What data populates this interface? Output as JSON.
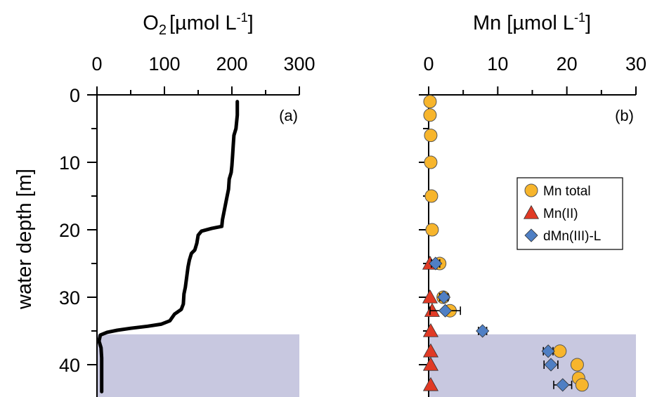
{
  "chart_data": [
    {
      "type": "line",
      "panel_label": "(a)",
      "title": "O₂ [µmol L⁻¹]",
      "title_parts": {
        "base": "O",
        "sub": "2",
        "unit": "[µmol L",
        "sup": "-1",
        "close": "]"
      },
      "xlabel": "O₂ [µmol L⁻¹]",
      "ylabel": "water depth [m]",
      "x_axis_position": "top",
      "y_inverted": true,
      "xlim": [
        0,
        300
      ],
      "ylim": [
        0,
        45
      ],
      "x_ticks": [
        "0",
        "100",
        "200",
        "300"
      ],
      "y_ticks": [
        "0",
        "10",
        "20",
        "30",
        "40"
      ],
      "shaded_depth_range": [
        35.5,
        45
      ],
      "shading_color": "#c8c8e0",
      "line_color": "#000000",
      "series": [
        {
          "points": [
            [
              208,
              1
            ],
            [
              208,
              3
            ],
            [
              206,
              5
            ],
            [
              203,
              6
            ],
            [
              202,
              7.5
            ],
            [
              201,
              9
            ],
            [
              200,
              10.5
            ],
            [
              199,
              11.5
            ],
            [
              196,
              12.5
            ],
            [
              195,
              14
            ],
            [
              192,
              15.5
            ],
            [
              190,
              16.5
            ],
            [
              188,
              17.5
            ],
            [
              186,
              18.5
            ],
            [
              185,
              19.5
            ],
            [
              170,
              19.8
            ],
            [
              155,
              20.2
            ],
            [
              150,
              20.8
            ],
            [
              148,
              22
            ],
            [
              145,
              23
            ],
            [
              140,
              23.5
            ],
            [
              137,
              24.5
            ],
            [
              135,
              25.5
            ],
            [
              133,
              27
            ],
            [
              131,
              28.5
            ],
            [
              129,
              29.5
            ],
            [
              128,
              31
            ],
            [
              125,
              31.8
            ],
            [
              115,
              32.5
            ],
            [
              108,
              33.5
            ],
            [
              95,
              34
            ],
            [
              75,
              34.3
            ],
            [
              50,
              34.6
            ],
            [
              30,
              34.9
            ],
            [
              15,
              35.2
            ],
            [
              5,
              35.6
            ],
            [
              3,
              36.5
            ],
            [
              6,
              37.5
            ],
            [
              7,
              39
            ],
            [
              7,
              41
            ],
            [
              7,
              43
            ],
            [
              7,
              44
            ]
          ]
        }
      ]
    },
    {
      "type": "scatter",
      "panel_label": "(b)",
      "title": "Mn [µmol L⁻¹]",
      "title_parts": {
        "base": "Mn [µmol L",
        "sup": "-1",
        "close": "]"
      },
      "xlabel": "Mn [µmol L⁻¹]",
      "x_axis_position": "top",
      "y_inverted": true,
      "xlim": [
        0,
        30
      ],
      "ylim": [
        0,
        45
      ],
      "x_ticks": [
        "0",
        "10",
        "20",
        "30"
      ],
      "shaded_depth_range": [
        35.5,
        45
      ],
      "shading_color": "#c8c8e0",
      "legend_position": "right",
      "series": [
        {
          "name": "Mn total",
          "marker": "circle",
          "color": "#f7b52c",
          "points": [
            {
              "x": 0.2,
              "y": 1
            },
            {
              "x": 0.2,
              "y": 3
            },
            {
              "x": 0.3,
              "y": 6
            },
            {
              "x": 0.3,
              "y": 10
            },
            {
              "x": 0.4,
              "y": 15
            },
            {
              "x": 0.5,
              "y": 20
            },
            {
              "x": 1.6,
              "y": 25
            },
            {
              "x": 2.1,
              "y": 30
            },
            {
              "x": 3.1,
              "y": 32
            },
            {
              "x": 19,
              "y": 38
            },
            {
              "x": 21.5,
              "y": 40
            },
            {
              "x": 21.7,
              "y": 42
            },
            {
              "x": 22.2,
              "y": 43
            }
          ]
        },
        {
          "name": "Mn(II)",
          "marker": "triangle",
          "color": "#e03a25",
          "points": [
            {
              "x": 0.2,
              "y": 25
            },
            {
              "x": 0.2,
              "y": 30
            },
            {
              "x": 0.5,
              "y": 32
            },
            {
              "x": 0.3,
              "y": 35
            },
            {
              "x": 0.3,
              "y": 38
            },
            {
              "x": 0.3,
              "y": 40
            },
            {
              "x": 0.3,
              "y": 43
            }
          ]
        },
        {
          "name": "dMn(III)-L",
          "marker": "diamond",
          "color": "#4f7fc4",
          "points": [
            {
              "x": 1.0,
              "y": 25,
              "err": 0.6
            },
            {
              "x": 2.2,
              "y": 30,
              "err": 0.6
            },
            {
              "x": 2.4,
              "y": 32,
              "err": 2.2
            },
            {
              "x": 7.8,
              "y": 35,
              "err": 0.6
            },
            {
              "x": 17.3,
              "y": 38,
              "err": 0.7
            },
            {
              "x": 17.7,
              "y": 40,
              "err": 1.0
            },
            {
              "x": 19.4,
              "y": 43,
              "err": 1.3
            }
          ]
        }
      ]
    }
  ]
}
